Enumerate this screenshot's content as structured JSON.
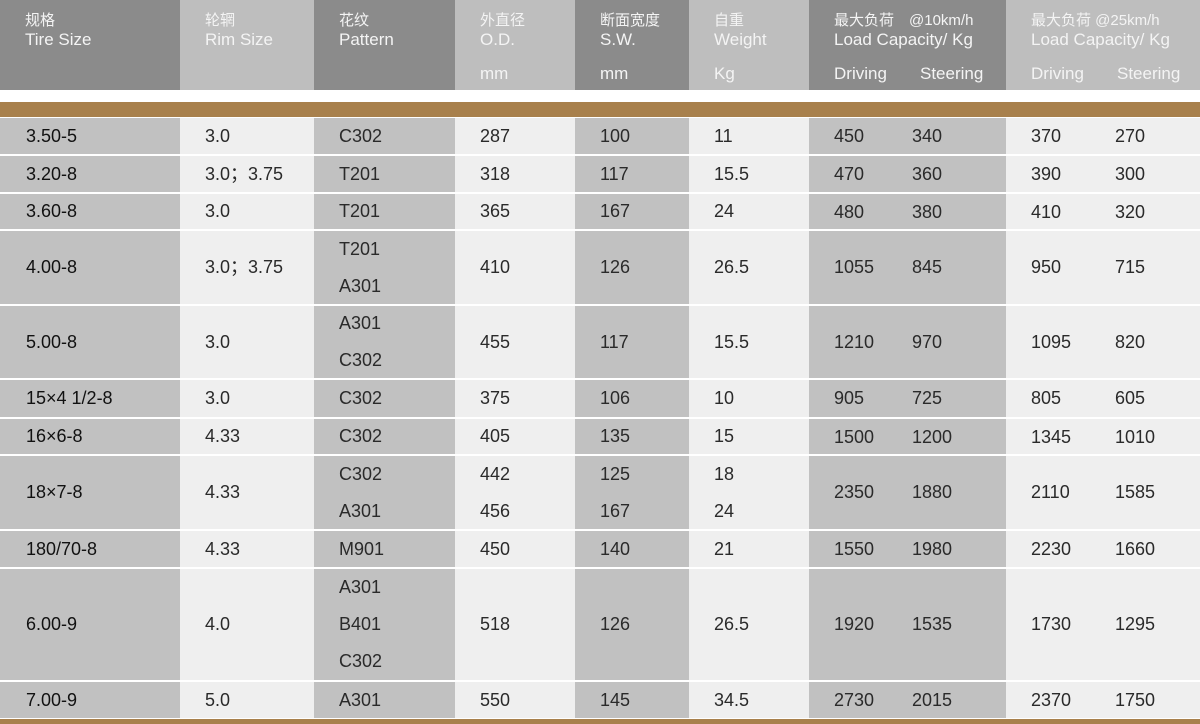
{
  "header": {
    "columns": [
      {
        "zh": "规格",
        "en": "Tire Size",
        "unit": ""
      },
      {
        "zh": "轮辋",
        "en": "Rim Size",
        "unit": ""
      },
      {
        "zh": "花纹",
        "en": "Pattern",
        "unit": ""
      },
      {
        "zh": "外直径",
        "en": "O.D.",
        "unit": "mm"
      },
      {
        "zh": "断面宽度",
        "en": "S.W.",
        "unit": "mm"
      },
      {
        "zh": "自重",
        "en": "Weight",
        "unit": "Kg"
      },
      {
        "zh": "最大负荷　@10km/h",
        "en": "Load Capacity/  Kg",
        "unit": "",
        "driving": "Driving",
        "steering": "Steering"
      },
      {
        "zh": "最大负荷  @25km/h",
        "en": "Load Capacity/ Kg",
        "unit": "",
        "driving": "Driving",
        "steering": "Steering"
      }
    ]
  },
  "colors": {
    "header_dark": "#8b8b8b",
    "header_light": "#bebebe",
    "body_dark": "#c1c1c1",
    "body_light": "#efefef",
    "accent_bar": "#a8804c"
  },
  "rows": [
    {
      "tire_size": "3.50-5",
      "rim_size": "3.0",
      "pattern": [
        "C302"
      ],
      "od": [
        "287"
      ],
      "sw": [
        "100"
      ],
      "weight": [
        "11"
      ],
      "load_10": {
        "driving": "450",
        "steering": "340"
      },
      "load_25": {
        "driving": "370",
        "steering": "270"
      }
    },
    {
      "tire_size": "3.20-8",
      "rim_size": "3.0；3.75",
      "pattern": [
        "T201"
      ],
      "od": [
        "318"
      ],
      "sw": [
        "117"
      ],
      "weight": [
        "15.5"
      ],
      "load_10": {
        "driving": "470",
        "steering": "360"
      },
      "load_25": {
        "driving": "390",
        "steering": "300"
      }
    },
    {
      "tire_size": "3.60-8",
      "rim_size": "3.0",
      "pattern": [
        "T201"
      ],
      "od": [
        "365"
      ],
      "sw": [
        "167"
      ],
      "weight": [
        "24"
      ],
      "load_10": {
        "driving": "480",
        "steering": "380"
      },
      "load_25": {
        "driving": "410",
        "steering": "320"
      }
    },
    {
      "tire_size": "4.00-8",
      "rim_size": "3.0；3.75",
      "pattern": [
        "T201",
        "A301"
      ],
      "od": [
        "410"
      ],
      "sw": [
        "126"
      ],
      "weight": [
        "26.5"
      ],
      "load_10": {
        "driving": "1055",
        "steering": "845"
      },
      "load_25": {
        "driving": "950",
        "steering": "715"
      }
    },
    {
      "tire_size": "5.00-8",
      "rim_size": "3.0",
      "pattern": [
        "A301",
        "C302"
      ],
      "od": [
        "455"
      ],
      "sw": [
        "117"
      ],
      "weight": [
        "15.5"
      ],
      "load_10": {
        "driving": "1210",
        "steering": "970"
      },
      "load_25": {
        "driving": "1095",
        "steering": "820"
      }
    },
    {
      "tire_size": "15×4 1/2-8",
      "rim_size": "3.0",
      "pattern": [
        "C302"
      ],
      "od": [
        "375"
      ],
      "sw": [
        "106"
      ],
      "weight": [
        "10"
      ],
      "load_10": {
        "driving": "905",
        "steering": "725"
      },
      "load_25": {
        "driving": "805",
        "steering": "605"
      }
    },
    {
      "tire_size": "16×6-8",
      "rim_size": "4.33",
      "pattern": [
        "C302"
      ],
      "od": [
        "405"
      ],
      "sw": [
        "135"
      ],
      "weight": [
        "15"
      ],
      "load_10": {
        "driving": "1500",
        "steering": "1200"
      },
      "load_25": {
        "driving": "1345",
        "steering": "1010"
      }
    },
    {
      "tire_size": "18×7-8",
      "rim_size": "4.33",
      "pattern": [
        "C302",
        "A301"
      ],
      "od": [
        "442",
        "456"
      ],
      "sw": [
        "125",
        "167"
      ],
      "weight": [
        "18",
        "24"
      ],
      "load_10": {
        "driving": "2350",
        "steering": "1880"
      },
      "load_25": {
        "driving": "2110",
        "steering": "1585"
      }
    },
    {
      "tire_size": "180/70-8",
      "rim_size": "4.33",
      "pattern": [
        "M901"
      ],
      "od": [
        "450"
      ],
      "sw": [
        "140"
      ],
      "weight": [
        "21"
      ],
      "load_10": {
        "driving": "1550",
        "steering": "1980"
      },
      "load_25": {
        "driving": "2230",
        "steering": "1660"
      }
    },
    {
      "tire_size": "6.00-9",
      "rim_size": "4.0",
      "pattern": [
        "A301",
        "B401",
        "C302"
      ],
      "od": [
        "518"
      ],
      "sw": [
        "126"
      ],
      "weight": [
        "26.5"
      ],
      "load_10": {
        "driving": "1920",
        "steering": "1535"
      },
      "load_25": {
        "driving": "1730",
        "steering": "1295"
      }
    },
    {
      "tire_size": "7.00-9",
      "rim_size": "5.0",
      "pattern": [
        "A301"
      ],
      "od": [
        "550"
      ],
      "sw": [
        "145"
      ],
      "weight": [
        "34.5"
      ],
      "load_10": {
        "driving": "2730",
        "steering": "2015"
      },
      "load_25": {
        "driving": "2370",
        "steering": "1750"
      }
    }
  ]
}
